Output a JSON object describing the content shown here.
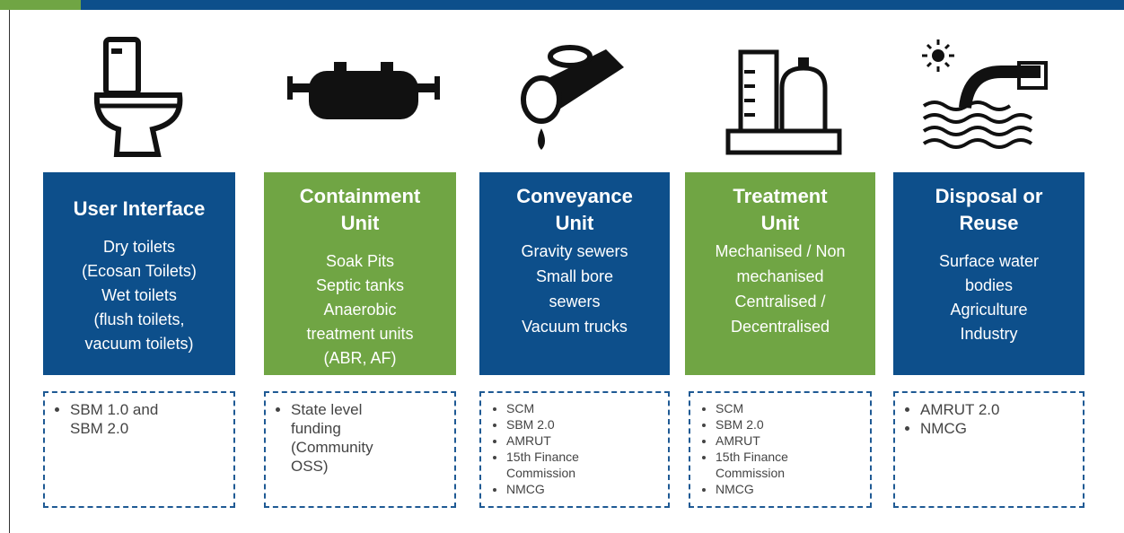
{
  "columns": [
    {
      "title": "User Interface",
      "items": [
        "Dry toilets",
        "(Ecosan Toilets)",
        "Wet toilets",
        "(flush toilets,",
        "vacuum toilets)"
      ],
      "funding": [
        "SBM 1.0 and SBM 2.0"
      ]
    },
    {
      "title": "Containment Unit",
      "items": [
        "Soak Pits",
        "Septic tanks",
        "Anaerobic",
        "treatment units",
        "(ABR, AF)"
      ],
      "funding": [
        "State level funding (Community OSS)"
      ]
    },
    {
      "title": "Conveyance Unit",
      "items": [
        "Gravity sewers",
        "Small bore",
        "sewers",
        "Vacuum trucks"
      ],
      "funding": [
        "SCM",
        "SBM 2.0",
        "AMRUT",
        "15th Finance Commission",
        "NMCG"
      ]
    },
    {
      "title": "Treatment Unit",
      "items": [
        "Mechanised / Non",
        "mechanised",
        "Centralised /",
        "Decentralised"
      ],
      "funding": [
        "SCM",
        "SBM 2.0",
        "AMRUT",
        "15th Finance Commission",
        "NMCG"
      ]
    },
    {
      "title": "Disposal or Reuse",
      "items": [
        "Surface water",
        "bodies",
        "Agriculture",
        "Industry"
      ],
      "funding": [
        "AMRUT 2.0",
        "NMCG"
      ]
    }
  ]
}
